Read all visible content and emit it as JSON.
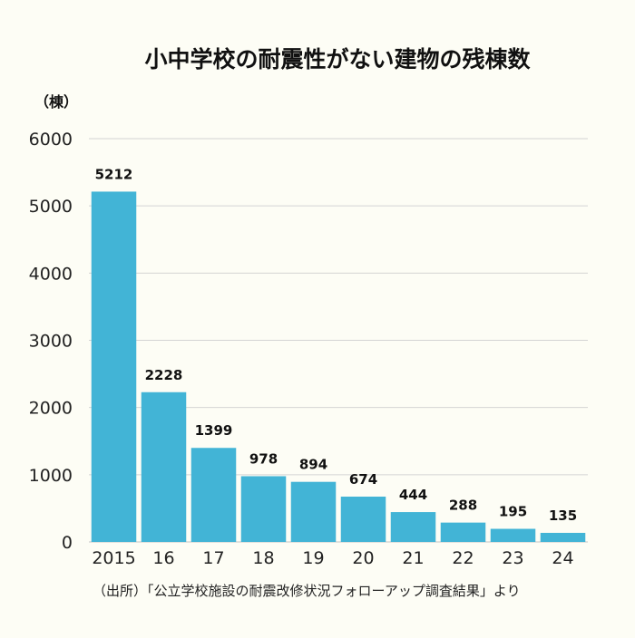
{
  "chart_data": {
    "type": "bar",
    "title": "小中学校の耐震性がない建物の残棟数",
    "unit_label": "（棟）",
    "categories": [
      "2015",
      "16",
      "17",
      "18",
      "19",
      "20",
      "21",
      "22",
      "23",
      "24"
    ],
    "values": [
      5212,
      2228,
      1399,
      978,
      894,
      674,
      444,
      288,
      195,
      135
    ],
    "data_labels": [
      "5212",
      "2228",
      "1399",
      "978",
      "894",
      "674",
      "444",
      "288",
      "195",
      "135"
    ],
    "ylim": [
      0,
      6000
    ],
    "y_ticks": [
      0,
      1000,
      2000,
      3000,
      4000,
      5000,
      6000
    ],
    "y_tick_labels": [
      "0",
      "1000",
      "2000",
      "3000",
      "4000",
      "5000",
      "6000"
    ],
    "grid": true,
    "bar_color": "#42b4d6",
    "source": "（出所）「公立学校施設の耐震改修状況フォローアップ調査結果」より"
  }
}
